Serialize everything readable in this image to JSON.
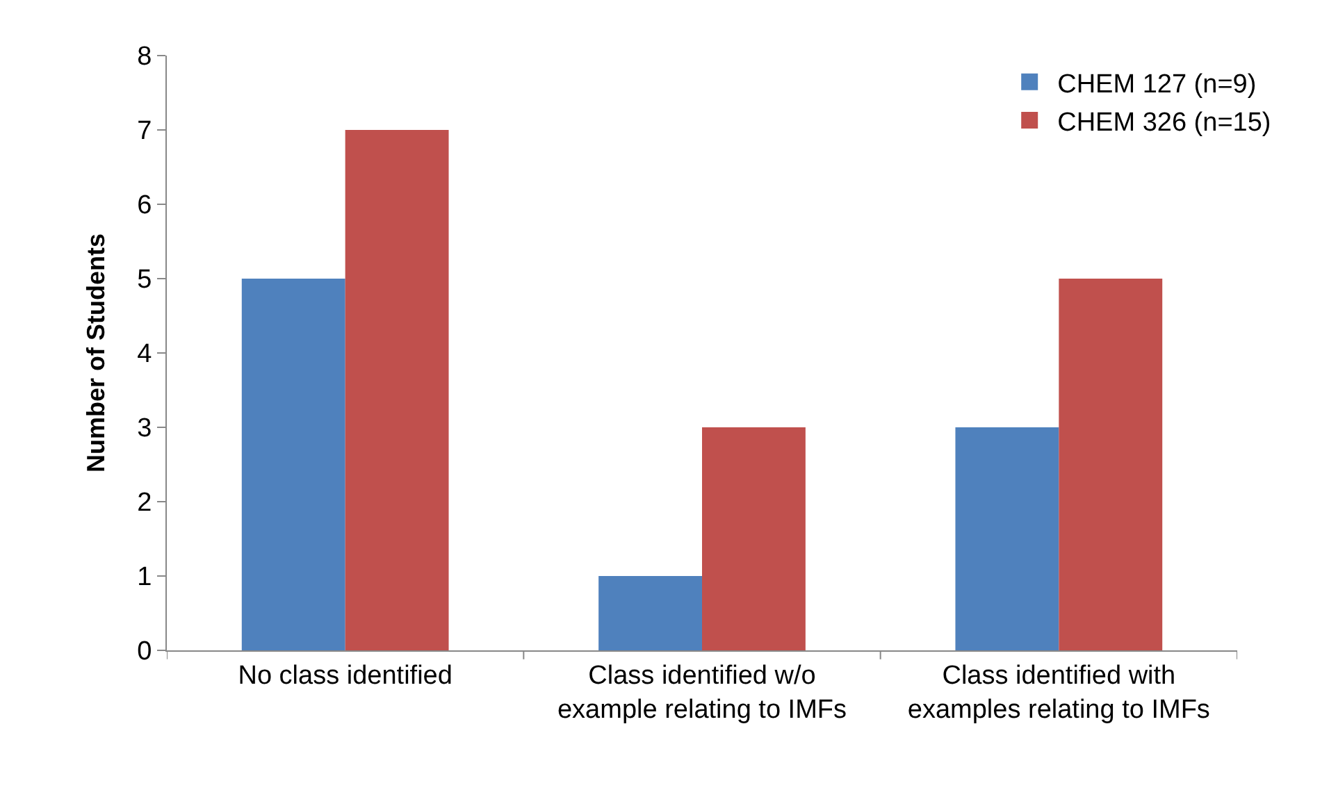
{
  "chart_data": {
    "type": "bar",
    "ylabel": "Number of Students",
    "categories": [
      "No class identified",
      "Class identified w/o example relating to IMFs",
      "Class identified with examples relating to IMFs"
    ],
    "series": [
      {
        "name": "CHEM 127 (n=9)",
        "color": "#4f81bd",
        "values": [
          5,
          1,
          3
        ]
      },
      {
        "name": "CHEM 326 (n=15)",
        "color": "#c0504d",
        "values": [
          7,
          3,
          5
        ]
      }
    ],
    "ylim": [
      0,
      8
    ],
    "yticks": [
      0,
      1,
      2,
      3,
      4,
      5,
      6,
      7,
      8
    ],
    "grid": false,
    "legend": "top right"
  }
}
